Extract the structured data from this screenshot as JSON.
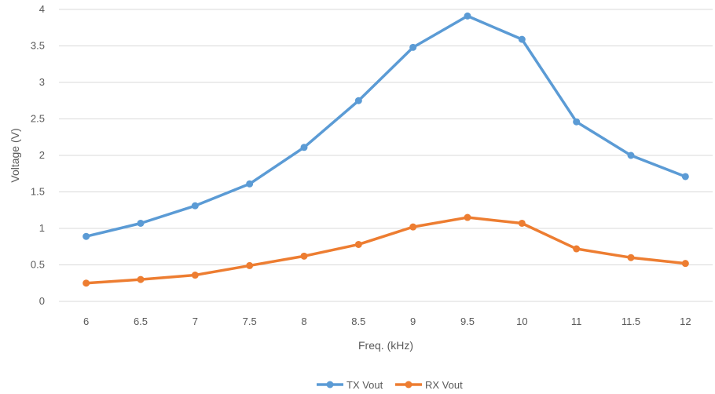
{
  "chart_data": {
    "type": "line",
    "title": "",
    "xlabel": "Freq. (kHz)",
    "ylabel": "Voltage (V)",
    "categories": [
      "6",
      "6.5",
      "7",
      "7.5",
      "8",
      "8.5",
      "9",
      "9.5",
      "10",
      "11",
      "11.5",
      "12"
    ],
    "ylim": [
      0,
      4
    ],
    "yticks": [
      "0",
      "0.5",
      "1",
      "1.5",
      "2",
      "2.5",
      "3",
      "3.5",
      "4"
    ],
    "grid": true,
    "legend_position": "bottom",
    "series": [
      {
        "name": "TX Vout",
        "color": "#5b9bd5",
        "values": [
          0.89,
          1.07,
          1.31,
          1.61,
          2.11,
          2.75,
          3.48,
          3.91,
          3.59,
          2.46,
          2.0,
          1.71
        ]
      },
      {
        "name": "RX Vout",
        "color": "#ed7d31",
        "values": [
          0.25,
          0.3,
          0.36,
          0.49,
          0.62,
          0.78,
          1.02,
          1.15,
          1.07,
          0.72,
          0.6,
          0.52
        ]
      }
    ]
  }
}
